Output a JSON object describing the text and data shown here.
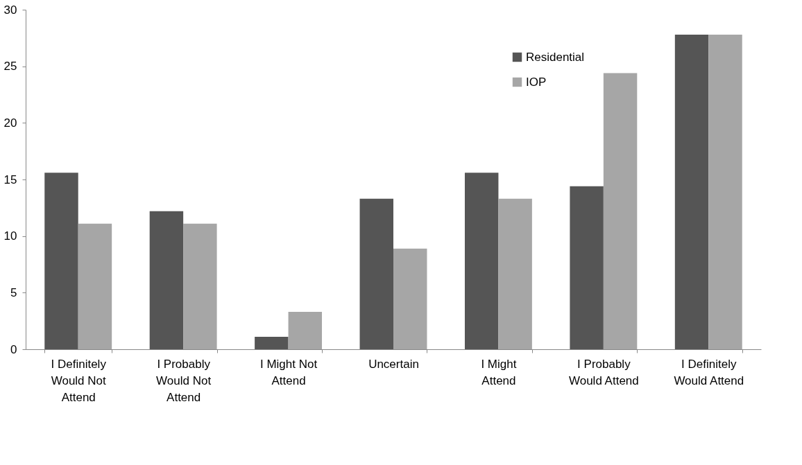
{
  "chart_data": {
    "type": "bar",
    "categories": [
      "I Definitely Would Not Attend",
      "I Probably Would Not Attend",
      "I Might Not Attend",
      "Uncertain",
      "I Might Attend",
      "I Probably Would Attend",
      "I Definitely Would Attend"
    ],
    "series": [
      {
        "name": "Residential",
        "color": "#555555",
        "values": [
          15.6,
          12.2,
          1.1,
          13.3,
          15.6,
          14.4,
          27.8
        ]
      },
      {
        "name": "IOP",
        "color": "#a6a6a6",
        "values": [
          11.1,
          11.1,
          3.3,
          8.9,
          13.3,
          24.4,
          27.8
        ]
      }
    ],
    "ylim": [
      0,
      30
    ],
    "yticks": [
      0,
      5,
      10,
      15,
      20,
      25,
      30
    ],
    "grid": false,
    "legend": "top right"
  }
}
